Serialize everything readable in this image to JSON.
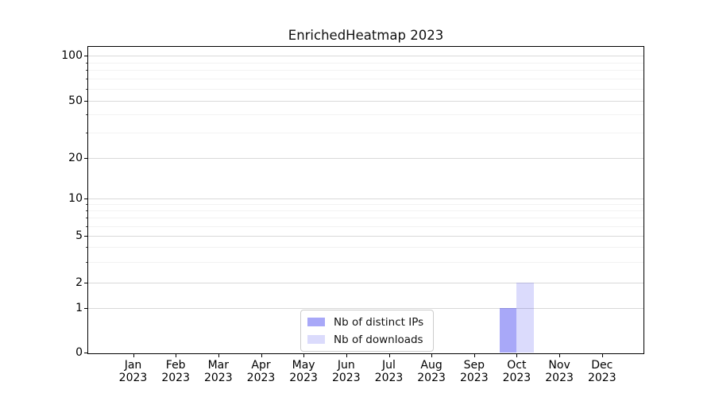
{
  "chart_data": {
    "type": "bar",
    "title": "EnrichedHeatmap 2023",
    "categories": [
      "Jan",
      "Feb",
      "Mar",
      "Apr",
      "May",
      "Jun",
      "Jul",
      "Aug",
      "Sep",
      "Oct",
      "Nov",
      "Dec"
    ],
    "x_tick_year_line": "2023",
    "series": [
      {
        "name": "Nb of distinct IPs",
        "color": "rgba(0,0,235,0.34)",
        "values": [
          0,
          0,
          0,
          0,
          0,
          0,
          0,
          0,
          0,
          1,
          0,
          0
        ]
      },
      {
        "name": "Nb of downloads",
        "color": "rgba(0,0,235,0.14)",
        "values": [
          0,
          0,
          0,
          0,
          0,
          0,
          0,
          0,
          0,
          2,
          0,
          0
        ]
      }
    ],
    "y_axis": {
      "ticks": [
        0,
        1,
        2,
        5,
        10,
        20,
        50,
        100
      ],
      "minor_gridline_values": [
        3,
        4,
        6,
        7,
        8,
        9,
        30,
        40,
        60,
        70,
        80,
        90
      ],
      "scale": "symlog",
      "range": [
        0,
        100
      ]
    },
    "legend": {
      "entries": [
        "Nb of distinct IPs",
        "Nb of downloads"
      ],
      "position": "lower center"
    },
    "grid": {
      "horizontal": true,
      "vertical": false,
      "minor": true
    },
    "colors": {
      "major_grid": "#d9d9d9",
      "minor_grid": "#f2f2f2",
      "spine": "#000000",
      "background": "#ffffff"
    }
  }
}
